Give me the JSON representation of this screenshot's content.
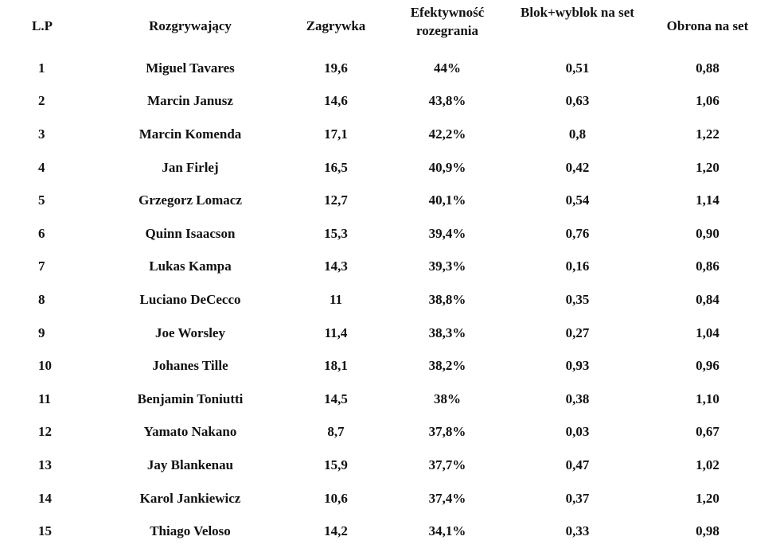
{
  "table": {
    "headers": {
      "lp": "L.P",
      "player": "Rozgrywający",
      "serve": "Zagrywka",
      "efficiency": "Efektywność rozegrania",
      "block": "Blok+wyblok na set",
      "defense": "Obrona na set"
    },
    "rows": [
      {
        "lp": "1",
        "player": "Miguel Tavares",
        "serve": "19,6",
        "efficiency": "44%",
        "block": "0,51",
        "defense": "0,88"
      },
      {
        "lp": "2",
        "player": "Marcin Janusz",
        "serve": "14,6",
        "efficiency": "43,8%",
        "block": "0,63",
        "defense": "1,06"
      },
      {
        "lp": "3",
        "player": "Marcin Komenda",
        "serve": "17,1",
        "efficiency": "42,2%",
        "block": "0,8",
        "defense": "1,22"
      },
      {
        "lp": "4",
        "player": "Jan Firlej",
        "serve": "16,5",
        "efficiency": "40,9%",
        "block": "0,42",
        "defense": "1,20"
      },
      {
        "lp": "5",
        "player": "Grzegorz Lomacz",
        "serve": "12,7",
        "efficiency": "40,1%",
        "block": "0,54",
        "defense": "1,14"
      },
      {
        "lp": "6",
        "player": "Quinn Isaacson",
        "serve": "15,3",
        "efficiency": "39,4%",
        "block": "0,76",
        "defense": "0,90"
      },
      {
        "lp": "7",
        "player": "Lukas Kampa",
        "serve": "14,3",
        "efficiency": "39,3%",
        "block": "0,16",
        "defense": "0,86"
      },
      {
        "lp": "8",
        "player": "Luciano DeCecco",
        "serve": "11",
        "efficiency": "38,8%",
        "block": "0,35",
        "defense": "0,84"
      },
      {
        "lp": "9",
        "player": "Joe Worsley",
        "serve": "11,4",
        "efficiency": "38,3%",
        "block": "0,27",
        "defense": "1,04"
      },
      {
        "lp": "10",
        "player": "Johanes Tille",
        "serve": "18,1",
        "efficiency": "38,2%",
        "block": "0,93",
        "defense": "0,96"
      },
      {
        "lp": "11",
        "player": "Benjamin Toniutti",
        "serve": "14,5",
        "efficiency": "38%",
        "block": "0,38",
        "defense": "1,10"
      },
      {
        "lp": "12",
        "player": "Yamato Nakano",
        "serve": "8,7",
        "efficiency": "37,8%",
        "block": "0,03",
        "defense": "0,67"
      },
      {
        "lp": "13",
        "player": "Jay Blankenau",
        "serve": "15,9",
        "efficiency": "37,7%",
        "block": "0,47",
        "defense": "1,02"
      },
      {
        "lp": "14",
        "player": "Karol Jankiewicz",
        "serve": "10,6",
        "efficiency": "37,4%",
        "block": "0,37",
        "defense": "1,20"
      },
      {
        "lp": "15",
        "player": "Thiago Veloso",
        "serve": "14,2",
        "efficiency": "34,1%",
        "block": "0,33",
        "defense": "0,98"
      }
    ]
  }
}
